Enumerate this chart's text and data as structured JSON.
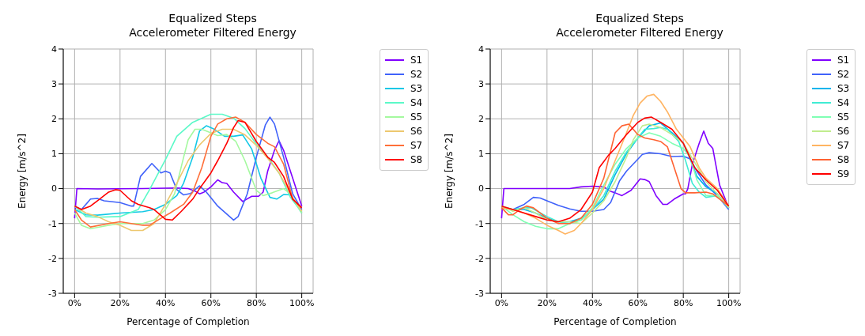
{
  "chart_data": [
    {
      "type": "line",
      "title": "Equalized Steps",
      "subtitle": "Accelerometer Filtered Energy",
      "xlabel": "Percentage of Completion",
      "ylabel": "Energy [m/s^2]",
      "xlim": [
        -5,
        105
      ],
      "xticks": [
        {
          "value": 0,
          "label": "0%"
        },
        {
          "value": 20,
          "label": "20%"
        },
        {
          "value": 40,
          "label": "40%"
        },
        {
          "value": 60,
          "label": "60%"
        },
        {
          "value": 80,
          "label": "80%"
        },
        {
          "value": 100,
          "label": "100%"
        }
      ],
      "ylim": [
        -3,
        4
      ],
      "yticks": [
        -3,
        -2,
        -1,
        0,
        1,
        2,
        3,
        4
      ],
      "grid": true,
      "legend": "top right",
      "marker": "none",
      "line_style": "solid",
      "series": [
        {
          "name": "S1",
          "color": "#8000ff",
          "x": [
            0,
            1,
            10,
            30,
            45,
            50,
            53,
            55,
            57,
            60,
            63,
            65,
            67,
            70,
            74,
            78,
            81,
            83,
            85,
            88,
            90,
            92,
            96,
            100
          ],
          "values": [
            -0.85,
            0,
            -0.01,
            0,
            0.02,
            0,
            -0.07,
            -0.15,
            -0.1,
            0.05,
            0.25,
            0.17,
            0.15,
            -0.1,
            -0.37,
            -0.22,
            -0.22,
            -0.1,
            0.5,
            1.1,
            1.37,
            1.1,
            0.3,
            -0.5
          ]
        },
        {
          "name": "S2",
          "color": "#4062fa",
          "x": [
            0,
            3,
            7,
            10,
            13,
            20,
            25,
            26,
            29,
            34,
            38,
            40,
            42,
            45,
            48,
            51,
            55,
            58,
            63,
            70,
            72,
            76,
            80,
            84,
            86,
            88,
            92,
            96,
            100
          ],
          "values": [
            -0.5,
            -0.6,
            -0.3,
            -0.28,
            -0.35,
            -0.4,
            -0.5,
            -0.5,
            0.35,
            0.72,
            0.45,
            0.5,
            0.45,
            -0.03,
            -0.18,
            -0.14,
            0.08,
            -0.1,
            -0.5,
            -0.9,
            -0.8,
            -0.15,
            0.9,
            1.83,
            2.05,
            1.85,
            0.9,
            -0.15,
            -0.6
          ]
        },
        {
          "name": "S3",
          "color": "#12c8e6",
          "x": [
            0,
            5,
            10,
            20,
            30,
            35,
            40,
            45,
            48,
            52,
            55,
            58,
            61,
            66,
            70,
            74,
            78,
            82,
            86,
            89,
            92,
            95,
            100
          ],
          "values": [
            -0.6,
            -0.75,
            -0.76,
            -0.7,
            -0.66,
            -0.6,
            -0.45,
            -0.2,
            0.16,
            0.9,
            1.65,
            1.8,
            1.72,
            1.5,
            1.5,
            1.54,
            1.13,
            0.3,
            -0.25,
            -0.3,
            -0.17,
            -0.18,
            -0.7
          ]
        },
        {
          "name": "S4",
          "color": "#5bf9c8",
          "x": [
            0,
            5,
            10,
            20,
            28,
            33,
            40,
            45,
            52,
            60,
            65,
            70,
            75,
            80,
            85,
            90,
            95,
            100
          ],
          "values": [
            -0.5,
            -0.8,
            -0.82,
            -0.8,
            -0.6,
            -0.03,
            0.83,
            1.5,
            1.9,
            2.13,
            2.13,
            2.02,
            1.72,
            1.28,
            0.9,
            0.45,
            -0.25,
            -0.68
          ]
        },
        {
          "name": "S5",
          "color": "#a4f99f",
          "x": [
            0,
            3,
            7,
            15,
            20,
            25,
            30,
            35,
            40,
            44,
            48,
            50,
            53,
            56,
            60,
            63,
            67,
            71,
            75,
            80,
            83,
            87,
            92,
            95,
            100
          ],
          "values": [
            -0.7,
            -1.05,
            -1.15,
            -1.05,
            -1,
            -1,
            -1,
            -0.9,
            -0.6,
            -0.15,
            0.9,
            1.4,
            1.7,
            1.7,
            1.6,
            1.52,
            1.55,
            1.35,
            0.8,
            -0.05,
            -0.2,
            -0.12,
            0,
            -0.15,
            -0.7
          ]
        },
        {
          "name": "S6",
          "color": "#edc86f",
          "x": [
            0,
            5,
            10,
            15,
            20,
            25,
            30,
            35,
            40,
            45,
            50,
            55,
            60,
            65,
            70,
            75,
            80,
            85,
            90,
            95,
            100
          ],
          "values": [
            -0.5,
            -0.7,
            -0.8,
            -0.95,
            -1.05,
            -1.2,
            -1.2,
            -1,
            -0.45,
            0.15,
            0.8,
            1.25,
            1.58,
            1.7,
            1.7,
            1.54,
            1.24,
            0.87,
            0.45,
            -0.15,
            -0.65
          ]
        },
        {
          "name": "S7",
          "color": "#ff6f39",
          "x": [
            0,
            3,
            7,
            15,
            20,
            25,
            30,
            33,
            38,
            42,
            48,
            52,
            56,
            60,
            63,
            67,
            71,
            75,
            80,
            85,
            88,
            92,
            96,
            100
          ],
          "values": [
            -0.6,
            -0.9,
            -1.1,
            -1,
            -0.95,
            -1,
            -1.05,
            -1.05,
            -0.85,
            -0.7,
            -0.45,
            -0.1,
            0.6,
            1.5,
            1.85,
            2,
            2.05,
            1.9,
            1.55,
            1.3,
            1.2,
            0.7,
            -0.3,
            -0.55
          ]
        },
        {
          "name": "S8",
          "color": "#ff0000",
          "x": [
            0,
            3,
            7,
            10,
            15,
            18,
            20,
            25,
            28,
            33,
            35,
            40,
            43,
            47,
            52,
            55,
            60,
            63,
            67,
            70,
            72,
            75,
            80,
            85,
            88,
            92,
            96,
            100
          ],
          "values": [
            -0.5,
            -0.6,
            -0.5,
            -0.35,
            -0.1,
            -0.03,
            -0.05,
            -0.35,
            -0.45,
            -0.55,
            -0.6,
            -0.88,
            -0.9,
            -0.65,
            -0.3,
            0,
            0.45,
            0.8,
            1.3,
            1.75,
            1.95,
            1.9,
            1.35,
            0.9,
            0.75,
            0.35,
            -0.3,
            -0.55
          ]
        }
      ]
    },
    {
      "type": "line",
      "title": "Equalized Steps",
      "subtitle": "Accelerometer Filtered Energy",
      "xlabel": "Percentage of Completion",
      "ylabel": "Energy [m/s^2]",
      "xlim": [
        -5,
        105
      ],
      "xticks": [
        {
          "value": 0,
          "label": "0%"
        },
        {
          "value": 20,
          "label": "20%"
        },
        {
          "value": 40,
          "label": "40%"
        },
        {
          "value": 60,
          "label": "60%"
        },
        {
          "value": 80,
          "label": "80%"
        },
        {
          "value": 100,
          "label": "100%"
        }
      ],
      "ylim": [
        -3,
        4
      ],
      "yticks": [
        -3,
        -2,
        -1,
        0,
        1,
        2,
        3,
        4
      ],
      "grid": true,
      "legend": "top right",
      "marker": "none",
      "line_style": "solid",
      "series": [
        {
          "name": "S1",
          "color": "#8000ff",
          "x": [
            0,
            1,
            10,
            30,
            35,
            40,
            45,
            48,
            50,
            53,
            57,
            61,
            63,
            65,
            68,
            71,
            73,
            76,
            80,
            81,
            82,
            84,
            87,
            89,
            91,
            93,
            96,
            100
          ],
          "values": [
            -0.85,
            0,
            0,
            0,
            0.05,
            0.07,
            0.05,
            -0.08,
            -0.12,
            -0.2,
            -0.05,
            0.28,
            0.26,
            0.2,
            -0.2,
            -0.45,
            -0.45,
            -0.3,
            -0.15,
            -0.15,
            0,
            0.7,
            1.3,
            1.65,
            1.3,
            1.15,
            0.1,
            -0.55
          ]
        },
        {
          "name": "S2",
          "color": "#4062fa",
          "x": [
            0,
            5,
            10,
            14,
            17,
            20,
            25,
            30,
            35,
            40,
            45,
            48,
            52,
            55,
            62,
            65,
            70,
            75,
            80,
            83,
            86,
            90,
            95,
            100
          ],
          "values": [
            -0.55,
            -0.6,
            -0.45,
            -0.25,
            -0.27,
            -0.35,
            -0.48,
            -0.58,
            -0.65,
            -0.65,
            -0.6,
            -0.4,
            0.23,
            0.5,
            0.98,
            1.03,
            1,
            0.92,
            0.93,
            0.85,
            0.5,
            0.1,
            -0.2,
            -0.6
          ]
        },
        {
          "name": "S3",
          "color": "#00b4ec",
          "x": [
            0,
            5,
            10,
            15,
            20,
            25,
            30,
            35,
            40,
            45,
            50,
            55,
            60,
            65,
            70,
            75,
            80,
            83,
            86,
            90,
            95,
            100
          ],
          "values": [
            -0.55,
            -0.6,
            -0.6,
            -0.7,
            -0.85,
            -0.95,
            -0.95,
            -0.85,
            -0.6,
            -0.3,
            0.4,
            1,
            1.45,
            1.8,
            1.88,
            1.6,
            1.3,
            0.85,
            0.35,
            0.05,
            -0.15,
            -0.55
          ]
        },
        {
          "name": "S4",
          "color": "#40ecd4",
          "x": [
            0,
            5,
            10,
            13,
            20,
            25,
            30,
            35,
            40,
            45,
            50,
            55,
            60,
            63,
            67,
            70,
            73,
            78,
            81,
            84,
            87,
            90,
            95,
            100
          ],
          "values": [
            -0.5,
            -0.6,
            -0.55,
            -0.55,
            -0.8,
            -0.95,
            -1,
            -0.9,
            -0.6,
            -0.2,
            0.5,
            1.05,
            1.45,
            1.7,
            1.72,
            1.75,
            1.7,
            1.35,
            0.8,
            0.15,
            -0.1,
            -0.25,
            -0.2,
            -0.5
          ]
        },
        {
          "name": "S5",
          "color": "#80ffb4",
          "x": [
            0,
            5,
            10,
            15,
            20,
            25,
            30,
            35,
            40,
            45,
            50,
            55,
            60,
            65,
            70,
            75,
            80,
            83,
            86,
            90,
            95,
            100
          ],
          "values": [
            -0.5,
            -0.75,
            -0.95,
            -1.08,
            -1.15,
            -1.15,
            -1,
            -0.9,
            -0.55,
            0.1,
            0.7,
            1.15,
            1.45,
            1.6,
            1.5,
            1.3,
            1.15,
            0.9,
            0.25,
            -0.2,
            -0.2,
            -0.55
          ]
        },
        {
          "name": "S6",
          "color": "#c0ec8e",
          "x": [
            0,
            5,
            10,
            15,
            20,
            25,
            30,
            35,
            40,
            45,
            50,
            55,
            58,
            62,
            65,
            70,
            75,
            80,
            85,
            90,
            95,
            100
          ],
          "values": [
            -0.5,
            -0.65,
            -0.55,
            -0.7,
            -0.9,
            -0.95,
            -0.95,
            -1,
            -0.7,
            -0.35,
            0.2,
            0.9,
            1.4,
            1.8,
            1.85,
            1.75,
            1.55,
            1.3,
            0.75,
            0.2,
            -0.15,
            -0.55
          ]
        },
        {
          "name": "S7",
          "color": "#ffb462",
          "x": [
            0,
            5,
            10,
            15,
            20,
            25,
            28,
            32,
            35,
            40,
            45,
            50,
            55,
            58,
            61,
            64,
            67,
            70,
            73,
            77,
            80,
            83,
            87,
            90,
            95,
            100
          ],
          "values": [
            -0.55,
            -0.6,
            -0.7,
            -0.85,
            -1.05,
            -1.2,
            -1.3,
            -1.2,
            -1,
            -0.6,
            0,
            0.8,
            1.6,
            2.1,
            2.45,
            2.65,
            2.7,
            2.5,
            2.2,
            1.7,
            1.45,
            1.2,
            0.6,
            0.3,
            0,
            -0.5
          ]
        },
        {
          "name": "S8",
          "color": "#ff6232",
          "x": [
            0,
            3,
            5,
            8,
            11,
            14,
            17,
            20,
            25,
            30,
            35,
            40,
            45,
            50,
            53,
            56,
            60,
            63,
            67,
            70,
            73,
            76,
            79,
            81,
            85,
            90,
            93,
            96,
            100
          ],
          "values": [
            -0.55,
            -0.75,
            -0.75,
            -0.6,
            -0.5,
            -0.55,
            -0.7,
            -0.85,
            -1,
            -1,
            -0.85,
            -0.45,
            0.3,
            1.6,
            1.8,
            1.85,
            1.55,
            1.45,
            1.4,
            1.35,
            1.2,
            0.6,
            0,
            -0.12,
            -0.12,
            -0.1,
            -0.15,
            -0.3,
            -0.5
          ]
        },
        {
          "name": "S9",
          "color": "#ff0000",
          "x": [
            0,
            5,
            10,
            15,
            20,
            25,
            30,
            35,
            40,
            43,
            47,
            50,
            55,
            60,
            63,
            66,
            70,
            75,
            80,
            85,
            90,
            95,
            100
          ],
          "values": [
            -0.5,
            -0.6,
            -0.7,
            -0.8,
            -0.9,
            -0.95,
            -0.85,
            -0.6,
            -0.1,
            0.6,
            0.95,
            1.15,
            1.55,
            1.9,
            2.02,
            2.05,
            1.9,
            1.7,
            1.3,
            0.6,
            0.25,
            -0.05,
            -0.5
          ]
        }
      ]
    }
  ]
}
